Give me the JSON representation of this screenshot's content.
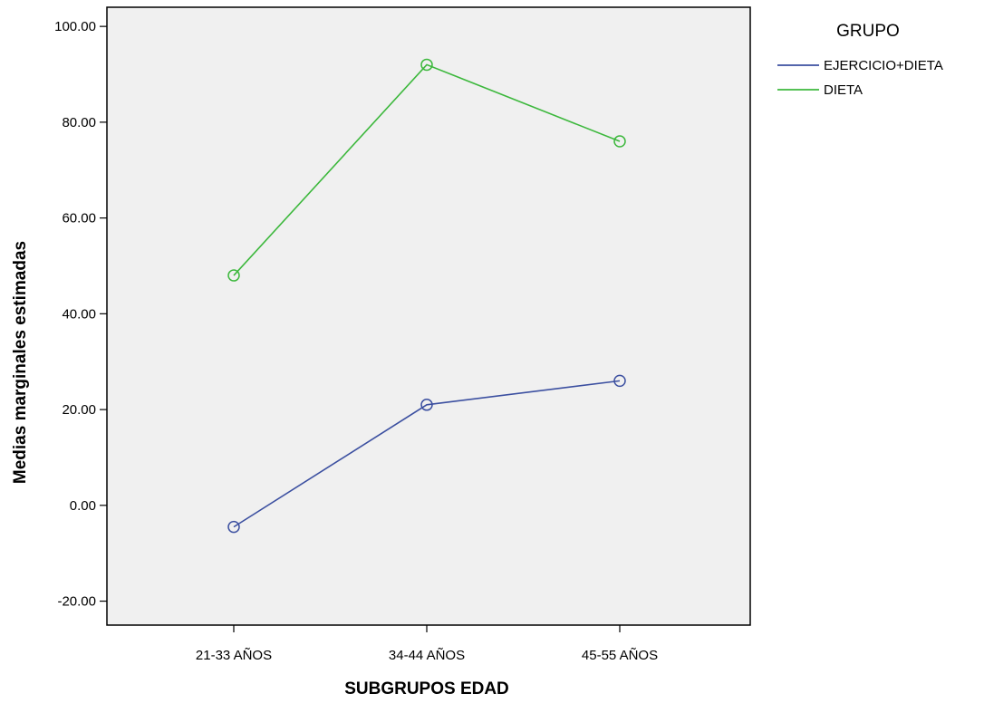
{
  "chart_data": {
    "type": "line",
    "xlabel": "SUBGRUPOS EDAD",
    "ylabel": "Medias marginales estimadas",
    "categories": [
      "21-33 AÑOS",
      "34-44 AÑOS",
      "45-55 AÑOS"
    ],
    "ylim": [
      -25,
      104
    ],
    "yticks": [
      -20,
      0,
      20,
      40,
      60,
      80,
      100
    ],
    "ytick_labels": [
      "-20.00",
      "0.00",
      "20.00",
      "40.00",
      "60.00",
      "80.00",
      "100.00"
    ],
    "legend_title": "GRUPO",
    "legend_position": "top-right, outside plot",
    "grid": false,
    "plot_background": "#f0f0f0",
    "markers": "open circles",
    "series": [
      {
        "name": "EJERCICIO+DIETA",
        "color": "#3b4fa0",
        "values": [
          -4.5,
          21,
          26
        ]
      },
      {
        "name": "DIETA",
        "color": "#3db83d",
        "values": [
          48,
          92,
          76
        ]
      }
    ]
  }
}
